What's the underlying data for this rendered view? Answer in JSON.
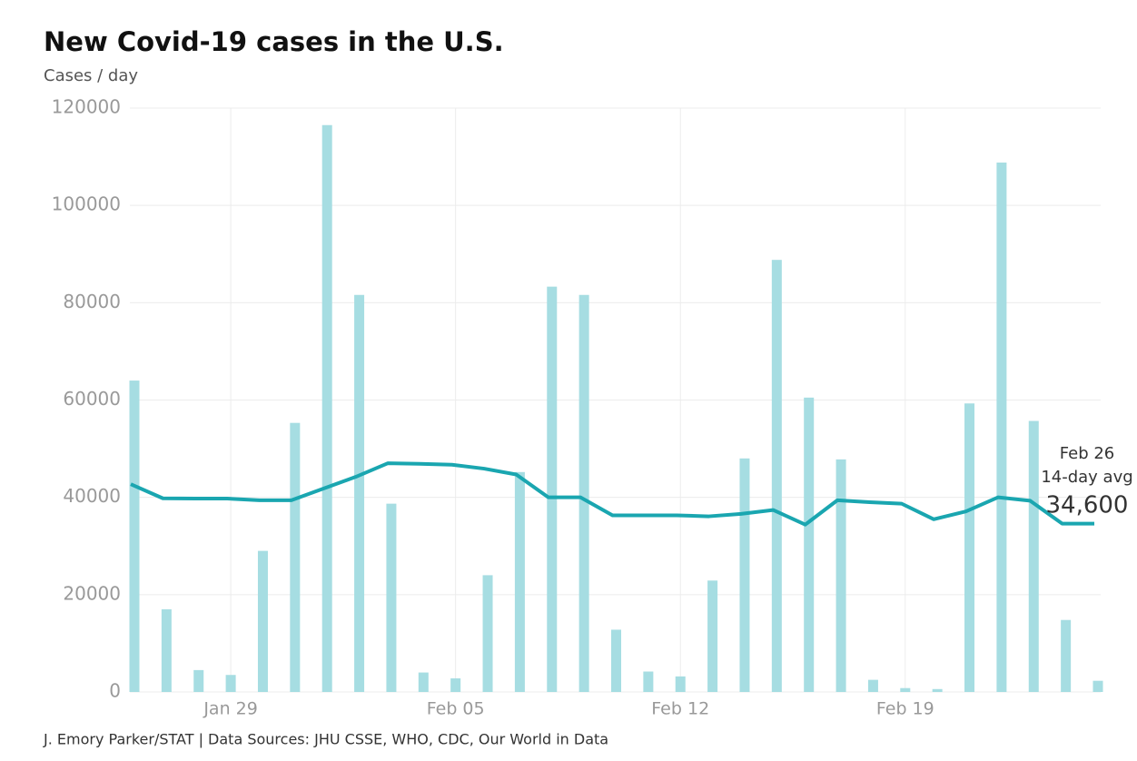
{
  "chart_data": {
    "type": "bar-line",
    "title": "New Covid-19 cases in the U.S.",
    "subtitle": "Cases / day",
    "source": "J. Emory Parker/STAT | Data Sources: JHU CSSE, WHO, CDC, Our World in Data",
    "categories": [
      null,
      null,
      null,
      "Jan 29",
      null,
      null,
      null,
      null,
      null,
      null,
      "Feb 05",
      null,
      null,
      null,
      null,
      null,
      null,
      "Feb 12",
      null,
      null,
      null,
      null,
      null,
      null,
      "Feb 19",
      null,
      null,
      null,
      null,
      null,
      null
    ],
    "series": [
      {
        "name": "Cases / day",
        "type": "bar",
        "color": "#a6dde2",
        "values": [
          64000,
          17000,
          4500,
          3500,
          29000,
          55300,
          116500,
          81600,
          38700,
          4000,
          2800,
          24000,
          45200,
          83300,
          81600,
          12800,
          4200,
          3200,
          22900,
          48000,
          88800,
          60500,
          47800,
          2500,
          800,
          600,
          59300,
          108800,
          55700,
          14800,
          2300
        ]
      },
      {
        "name": "14-day avg",
        "type": "line",
        "color": "#1aa6b0",
        "values": [
          42700,
          39800,
          39750,
          39750,
          39400,
          39400,
          41800,
          44200,
          47000,
          46900,
          46700,
          45900,
          44700,
          40000,
          40000,
          36300,
          36300,
          36300,
          36100,
          36600,
          37400,
          34400,
          39400,
          39000,
          38700,
          35500,
          37100,
          40000,
          39300,
          34600,
          34600
        ]
      }
    ],
    "annotation": {
      "date": "Feb 26",
      "label": "14-day avg",
      "value": 34600,
      "value_label": "34,600"
    },
    "ylim": [
      0,
      120000
    ],
    "yticks": [
      0,
      20000,
      40000,
      60000,
      80000,
      100000,
      120000
    ],
    "grid": true
  }
}
